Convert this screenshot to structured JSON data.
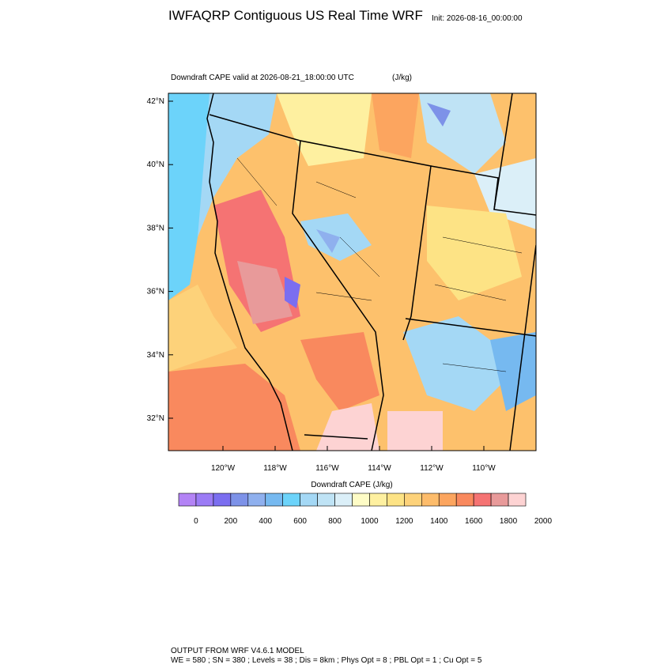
{
  "header": {
    "title": "IWFAQRP Contiguous US Real Time WRF",
    "init": "Init: 2026-08-16_00:00:00"
  },
  "map": {
    "subtitle": "Downdraft CAPE valid at 2026-08-21_18:00:00 UTC",
    "units": "(J/kg)",
    "lat_labels": [
      "42°N",
      "40°N",
      "38°N",
      "36°N",
      "34°N",
      "32°N"
    ],
    "lon_labels": [
      "120°W",
      "118°W",
      "116°W",
      "114°W",
      "112°W",
      "110°W"
    ]
  },
  "colorbar": {
    "title": "Downdraft CAPE  (J/kg)",
    "labels": [
      "0",
      "200",
      "400",
      "600",
      "800",
      "1000",
      "1200",
      "1400",
      "1600",
      "1800",
      "2000"
    ],
    "colors": [
      "#b383f5",
      "#9b7bf5",
      "#7b6ef0",
      "#7d92e8",
      "#8fb0ee",
      "#76b9f0",
      "#6cd3fa",
      "#a4d8f5",
      "#bfe3f5",
      "#dbeff8",
      "#fefcc6",
      "#fef0a0",
      "#fde385",
      "#fdd27a",
      "#fdbc6b",
      "#fca55f",
      "#f9895e",
      "#f57373",
      "#e89a9a",
      "#fdd3d3"
    ]
  },
  "footer": {
    "line1": "OUTPUT FROM WRF V4.6.1 MODEL",
    "line2": "WE = 580 ; SN = 380 ; Levels = 38 ; Dis = 8km ; Phys Opt = 8 ; PBL Opt = 1 ; Cu Opt = 5"
  }
}
